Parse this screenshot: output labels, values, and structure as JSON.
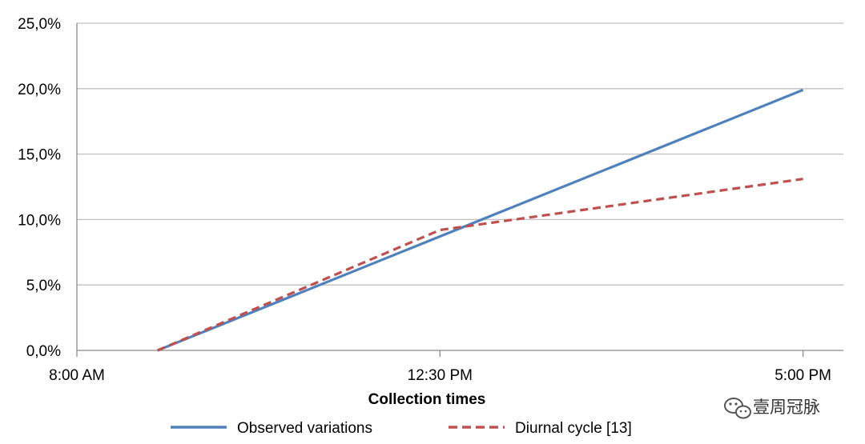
{
  "chart_data": {
    "type": "line",
    "title": "",
    "xlabel": "Collection times",
    "ylabel": "",
    "x_tick_labels": [
      "8:00 AM",
      "12:30 PM",
      "5:00 PM"
    ],
    "x_tick_values": [
      8.0,
      12.5,
      17.0
    ],
    "xlim": [
      8.0,
      17.5
    ],
    "y_tick_labels": [
      "0,0%",
      "5,0%",
      "10,0%",
      "15,0%",
      "20,0%",
      "25,0%"
    ],
    "y_tick_values": [
      0,
      5,
      10,
      15,
      20,
      25
    ],
    "ylim": [
      0,
      25
    ],
    "grid": "horizontal",
    "legend_position": "bottom",
    "series": [
      {
        "name": "Observed variations",
        "color": "#4f81bd",
        "style": "solid",
        "x": [
          9.0,
          17.0
        ],
        "y": [
          0.0,
          19.9
        ]
      },
      {
        "name": "Diurnal cycle [13]",
        "color": "#c0504d",
        "style": "dashed",
        "x": [
          9.0,
          12.5,
          17.0
        ],
        "y": [
          0.0,
          9.2,
          13.1
        ]
      }
    ]
  },
  "watermark": {
    "text": "壹周冠脉",
    "icon": "wechat-icon"
  }
}
